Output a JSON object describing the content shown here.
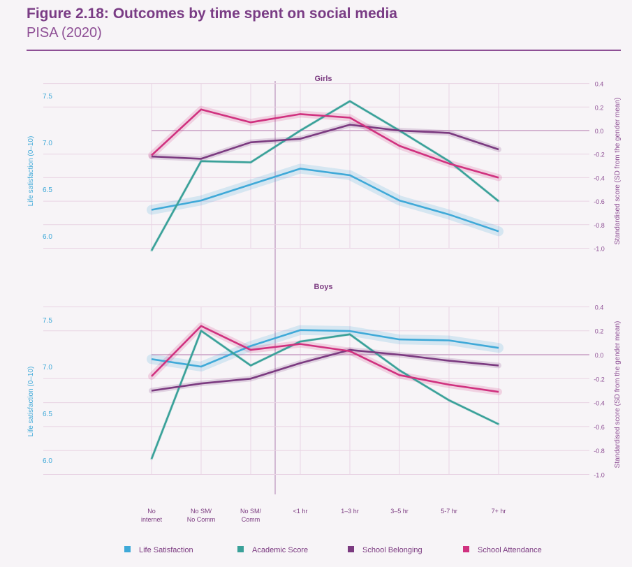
{
  "header": {
    "title": "Figure 2.18: Outcomes by time spent on social media",
    "subtitle": "PISA (2020)"
  },
  "colors": {
    "life_satisfaction": "#3fa9d8",
    "academic_score": "#3aa199",
    "school_belonging": "#7b3a80",
    "school_attendance": "#d0317f",
    "left_axis": "#3fa9d8",
    "right_axis": "#8e4f95",
    "grid": "#e9d4e4",
    "zero_line": "#d4b4d1"
  },
  "chart_data": [
    {
      "type": "line",
      "title": "Girls",
      "categories": [
        "No internet",
        "No SM/ No Comm",
        "No SM/ Comm",
        "<1 hr",
        "1–3 hr",
        "3–5 hr",
        "5-7 hr",
        "7+ hr"
      ],
      "y_left": {
        "label": "Life satisfaction (0–10)",
        "ticks": [
          "6.0",
          "6.5",
          "7.0",
          "7.5"
        ],
        "range": [
          5.85,
          7.6
        ]
      },
      "y_right": {
        "label": "Standardised score (SD from the gender mean)",
        "ticks": [
          "-1.0",
          "-0.8",
          "-0.6",
          "-0.4",
          "-0.2",
          "0.0",
          "0.2",
          "0.4"
        ],
        "range": [
          -1.05,
          0.45
        ]
      },
      "series": [
        {
          "name": "Life Satisfaction",
          "axis": "left",
          "values": [
            6.28,
            6.38,
            6.55,
            6.72,
            6.65,
            6.38,
            6.23,
            6.05
          ]
        },
        {
          "name": "Academic Score",
          "axis": "right",
          "values": [
            -1.02,
            -0.26,
            -0.27,
            0.0,
            0.25,
            0.0,
            -0.26,
            -0.6
          ]
        },
        {
          "name": "School Belonging",
          "axis": "right",
          "values": [
            -0.22,
            -0.24,
            -0.1,
            -0.07,
            0.05,
            0.0,
            -0.02,
            -0.16
          ]
        },
        {
          "name": "School Attendance",
          "axis": "right",
          "values": [
            -0.21,
            0.18,
            0.07,
            0.14,
            0.11,
            -0.13,
            -0.28,
            -0.4
          ]
        }
      ]
    },
    {
      "type": "line",
      "title": "Boys",
      "categories": [
        "No internet",
        "No SM/ No Comm",
        "No SM/ Comm",
        "<1 hr",
        "1–3 hr",
        "3–5 hr",
        "5-7 hr",
        "7+ hr"
      ],
      "y_left": {
        "label": "Life satisfaction (0–10)",
        "ticks": [
          "6.0",
          "6.5",
          "7.0",
          "7.5"
        ],
        "range": [
          5.85,
          7.6
        ]
      },
      "y_right": {
        "label": "Standardised score (SD from the gender mean)",
        "ticks": [
          "-1.0",
          "-0.8",
          "-0.6",
          "-0.4",
          "-0.2",
          "0.0",
          "0.2",
          "0.4"
        ],
        "range": [
          -1.05,
          0.45
        ]
      },
      "series": [
        {
          "name": "Life Satisfaction",
          "axis": "left",
          "values": [
            7.08,
            7.0,
            7.22,
            7.39,
            7.38,
            7.29,
            7.28,
            7.2
          ]
        },
        {
          "name": "Academic Score",
          "axis": "right",
          "values": [
            -0.87,
            0.2,
            -0.09,
            0.11,
            0.17,
            -0.13,
            -0.38,
            -0.58
          ]
        },
        {
          "name": "School Belonging",
          "axis": "right",
          "values": [
            -0.3,
            -0.24,
            -0.2,
            -0.07,
            0.04,
            0.0,
            -0.05,
            -0.09
          ]
        },
        {
          "name": "School Attendance",
          "axis": "right",
          "values": [
            -0.18,
            0.24,
            0.04,
            0.09,
            0.03,
            -0.17,
            -0.25,
            -0.31
          ]
        }
      ]
    }
  ],
  "x_ticks": [
    [
      "No",
      "internet"
    ],
    [
      "No SM/",
      "No Comm"
    ],
    [
      "No SM/",
      "Comm"
    ],
    [
      "<1 hr"
    ],
    [
      "1–3 hr"
    ],
    [
      "3–5 hr"
    ],
    [
      "5-7 hr"
    ],
    [
      "7+ hr"
    ]
  ],
  "legend": {
    "position": "bottom",
    "items": [
      {
        "label": "Life Satisfaction",
        "color": "#3fa9d8"
      },
      {
        "label": "Academic Score",
        "color": "#3aa199"
      },
      {
        "label": "School Belonging",
        "color": "#7b3a80"
      },
      {
        "label": "School Attendance",
        "color": "#d0317f"
      }
    ]
  }
}
